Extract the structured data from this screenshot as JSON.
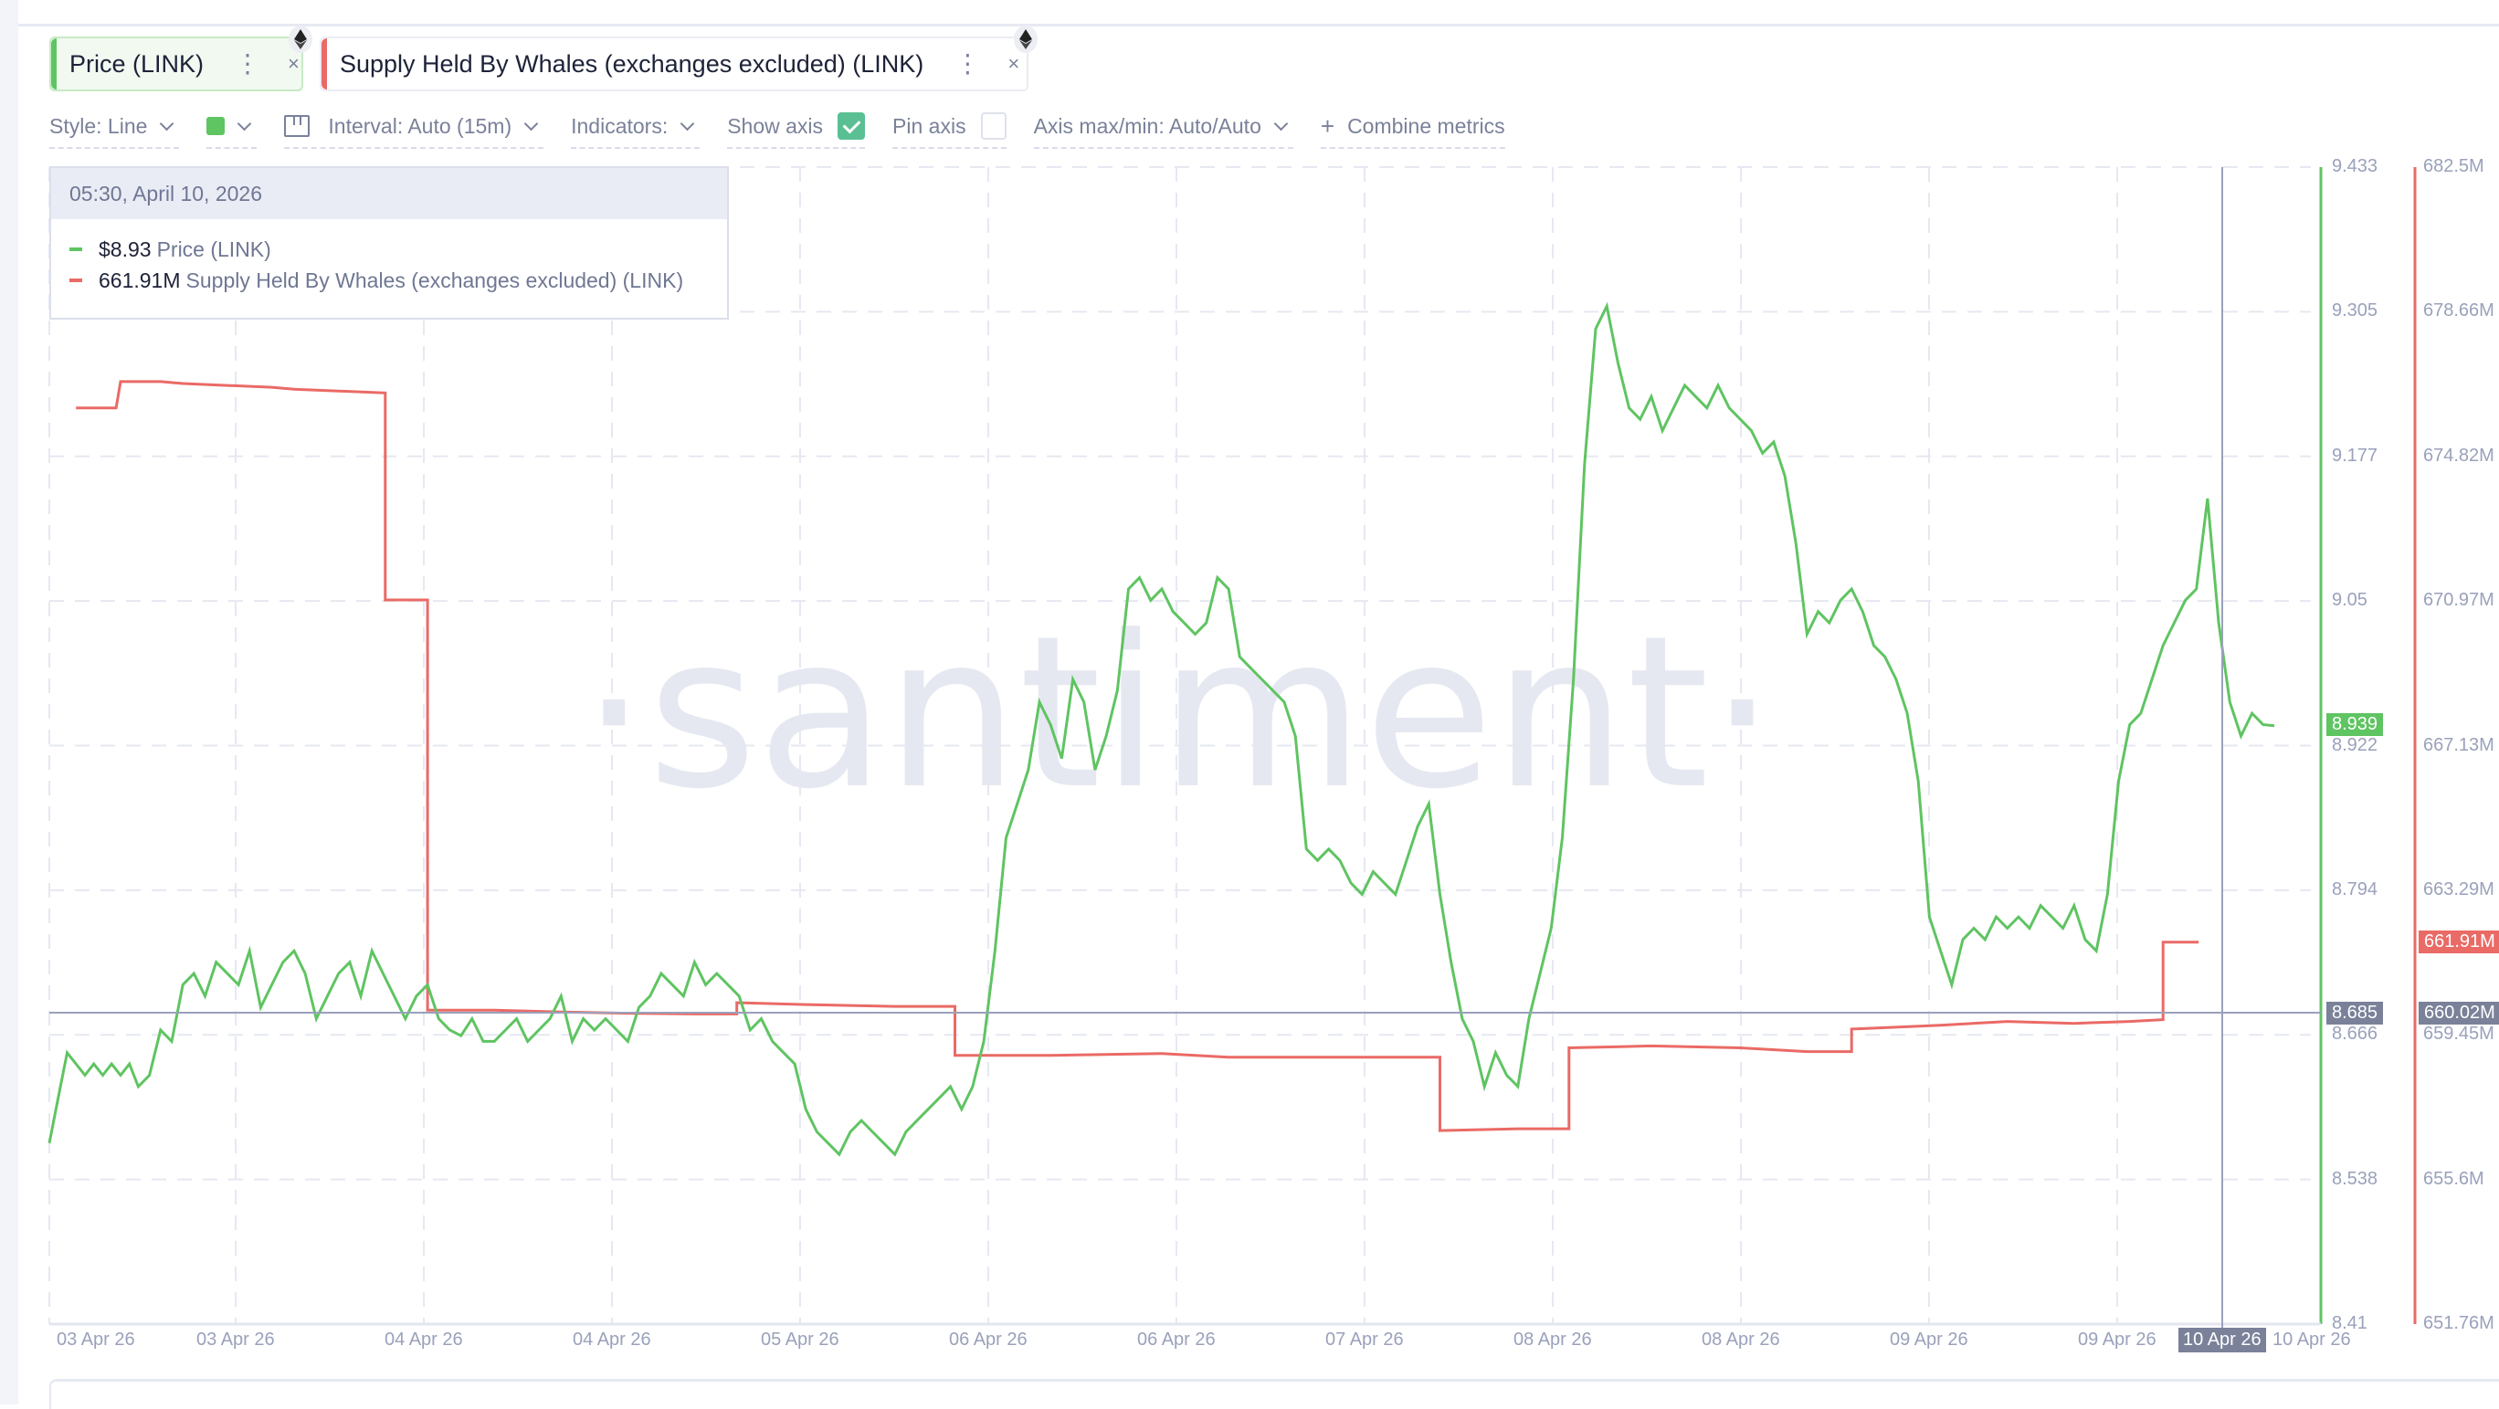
{
  "metrics": [
    {
      "label": "Price (LINK)",
      "color": "#5fc462",
      "menu_icon": "kebab-icon",
      "close_icon": "close-icon",
      "asset_icon": "ethereum-icon"
    },
    {
      "label": "Supply Held By Whales (exchanges excluded) (LINK)",
      "color": "#ea6a66",
      "menu_icon": "kebab-icon",
      "close_icon": "close-icon",
      "asset_icon": "ethereum-icon"
    }
  ],
  "toolbar": {
    "style": "Style: Line",
    "color_swatch": "#5fc462",
    "interval": "Interval: Auto (15m)",
    "indicators": "Indicators:",
    "show_axis": "Show axis",
    "show_axis_checked": true,
    "pin_axis": "Pin axis",
    "pin_axis_checked": false,
    "axis_maxmin": "Axis max/min: Auto/Auto",
    "combine": "Combine metrics",
    "close_glyph": "×",
    "kebab_glyph": "⋮",
    "plus_glyph": "+"
  },
  "tooltip": {
    "datetime": "05:30, April 10, 2026",
    "rows": [
      {
        "value": "$8.93",
        "name": "Price (LINK)",
        "color": "#5fc462"
      },
      {
        "value": "661.91M",
        "name": "Supply Held By Whales (exchanges excluded) (LINK)",
        "color": "#ea6a66"
      }
    ]
  },
  "watermark": "·santiment·",
  "crosshair": {
    "price_label": "8.685",
    "supply_label": "660.02M",
    "x_label": "10 Apr 26"
  },
  "last_value_badges": {
    "price": "8.939",
    "supply": "661.91M"
  },
  "chart_data": {
    "type": "line",
    "title": "",
    "xlabel": "",
    "x_ticks": [
      "03 Apr 26",
      "03 Apr 26",
      "04 Apr 26",
      "04 Apr 26",
      "05 Apr 26",
      "06 Apr 26",
      "06 Apr 26",
      "07 Apr 26",
      "08 Apr 26",
      "08 Apr 26",
      "09 Apr 26",
      "09 Apr 26",
      "10 Apr 26"
    ],
    "y_left": {
      "label": "Price (LINK)",
      "ticks": [
        "9.433",
        "9.305",
        "9.177",
        "9.05",
        "8.922",
        "8.794",
        "8.666",
        "8.538",
        "8.41"
      ],
      "range": [
        8.41,
        9.433
      ],
      "color": "#5fc462"
    },
    "y_right": {
      "label": "Supply Held By Whales (exchanges excluded) (LINK)",
      "ticks": [
        "682.5M",
        "678.66M",
        "674.82M",
        "670.97M",
        "667.13M",
        "663.29M",
        "659.45M",
        "655.6M",
        "651.76M"
      ],
      "range": [
        651.76,
        682.5
      ],
      "color": "#ea6a66"
    },
    "grid": true,
    "legend_position": "top-left tooltip",
    "x_domain": [
      "03 Apr 26",
      "10 Apr 26"
    ],
    "series": [
      {
        "name": "Price (LINK)",
        "axis": "left",
        "color": "#5fc462",
        "points_xfrac_value": [
          [
            0.0,
            8.57
          ],
          [
            0.004,
            8.61
          ],
          [
            0.008,
            8.65
          ],
          [
            0.012,
            8.64
          ],
          [
            0.016,
            8.63
          ],
          [
            0.02,
            8.64
          ],
          [
            0.024,
            8.63
          ],
          [
            0.028,
            8.64
          ],
          [
            0.032,
            8.63
          ],
          [
            0.036,
            8.64
          ],
          [
            0.04,
            8.62
          ],
          [
            0.045,
            8.63
          ],
          [
            0.05,
            8.67
          ],
          [
            0.055,
            8.66
          ],
          [
            0.06,
            8.71
          ],
          [
            0.065,
            8.72
          ],
          [
            0.07,
            8.7
          ],
          [
            0.075,
            8.73
          ],
          [
            0.08,
            8.72
          ],
          [
            0.085,
            8.71
          ],
          [
            0.09,
            8.74
          ],
          [
            0.095,
            8.69
          ],
          [
            0.1,
            8.71
          ],
          [
            0.105,
            8.73
          ],
          [
            0.11,
            8.74
          ],
          [
            0.115,
            8.72
          ],
          [
            0.12,
            8.68
          ],
          [
            0.125,
            8.7
          ],
          [
            0.13,
            8.72
          ],
          [
            0.135,
            8.73
          ],
          [
            0.14,
            8.7
          ],
          [
            0.145,
            8.74
          ],
          [
            0.15,
            8.72
          ],
          [
            0.155,
            8.7
          ],
          [
            0.16,
            8.68
          ],
          [
            0.165,
            8.7
          ],
          [
            0.17,
            8.71
          ],
          [
            0.175,
            8.68
          ],
          [
            0.18,
            8.67
          ],
          [
            0.185,
            8.665
          ],
          [
            0.19,
            8.68
          ],
          [
            0.195,
            8.66
          ],
          [
            0.2,
            8.66
          ],
          [
            0.205,
            8.67
          ],
          [
            0.21,
            8.68
          ],
          [
            0.215,
            8.66
          ],
          [
            0.22,
            8.67
          ],
          [
            0.225,
            8.68
          ],
          [
            0.23,
            8.7
          ],
          [
            0.235,
            8.66
          ],
          [
            0.24,
            8.68
          ],
          [
            0.245,
            8.67
          ],
          [
            0.25,
            8.68
          ],
          [
            0.255,
            8.67
          ],
          [
            0.26,
            8.66
          ],
          [
            0.265,
            8.69
          ],
          [
            0.27,
            8.7
          ],
          [
            0.275,
            8.72
          ],
          [
            0.28,
            8.71
          ],
          [
            0.285,
            8.7
          ],
          [
            0.29,
            8.73
          ],
          [
            0.295,
            8.71
          ],
          [
            0.3,
            8.72
          ],
          [
            0.305,
            8.71
          ],
          [
            0.31,
            8.7
          ],
          [
            0.315,
            8.67
          ],
          [
            0.32,
            8.68
          ],
          [
            0.325,
            8.66
          ],
          [
            0.33,
            8.65
          ],
          [
            0.335,
            8.64
          ],
          [
            0.34,
            8.6
          ],
          [
            0.345,
            8.58
          ],
          [
            0.35,
            8.57
          ],
          [
            0.355,
            8.56
          ],
          [
            0.36,
            8.58
          ],
          [
            0.365,
            8.59
          ],
          [
            0.37,
            8.58
          ],
          [
            0.375,
            8.57
          ],
          [
            0.38,
            8.56
          ],
          [
            0.385,
            8.58
          ],
          [
            0.39,
            8.59
          ],
          [
            0.395,
            8.6
          ],
          [
            0.4,
            8.61
          ],
          [
            0.405,
            8.62
          ],
          [
            0.41,
            8.6
          ],
          [
            0.415,
            8.62
          ],
          [
            0.42,
            8.66
          ],
          [
            0.425,
            8.74
          ],
          [
            0.43,
            8.84
          ],
          [
            0.435,
            8.87
          ],
          [
            0.44,
            8.9
          ],
          [
            0.445,
            8.96
          ],
          [
            0.45,
            8.94
          ],
          [
            0.455,
            8.91
          ],
          [
            0.46,
            8.98
          ],
          [
            0.465,
            8.96
          ],
          [
            0.47,
            8.9
          ],
          [
            0.475,
            8.93
          ],
          [
            0.48,
            8.97
          ],
          [
            0.485,
            9.06
          ],
          [
            0.49,
            9.07
          ],
          [
            0.495,
            9.05
          ],
          [
            0.5,
            9.06
          ],
          [
            0.505,
            9.04
          ],
          [
            0.51,
            9.03
          ],
          [
            0.515,
            9.02
          ],
          [
            0.52,
            9.03
          ],
          [
            0.525,
            9.07
          ],
          [
            0.53,
            9.06
          ],
          [
            0.535,
            9.0
          ],
          [
            0.54,
            8.99
          ],
          [
            0.545,
            8.98
          ],
          [
            0.55,
            8.97
          ],
          [
            0.555,
            8.96
          ],
          [
            0.56,
            8.93
          ],
          [
            0.565,
            8.83
          ],
          [
            0.57,
            8.82
          ],
          [
            0.575,
            8.83
          ],
          [
            0.58,
            8.82
          ],
          [
            0.585,
            8.8
          ],
          [
            0.59,
            8.79
          ],
          [
            0.595,
            8.81
          ],
          [
            0.6,
            8.8
          ],
          [
            0.605,
            8.79
          ],
          [
            0.61,
            8.82
          ],
          [
            0.615,
            8.85
          ],
          [
            0.62,
            8.87
          ],
          [
            0.625,
            8.79
          ],
          [
            0.63,
            8.73
          ],
          [
            0.635,
            8.68
          ],
          [
            0.64,
            8.66
          ],
          [
            0.645,
            8.62
          ],
          [
            0.65,
            8.65
          ],
          [
            0.655,
            8.63
          ],
          [
            0.66,
            8.62
          ],
          [
            0.665,
            8.68
          ],
          [
            0.67,
            8.72
          ],
          [
            0.675,
            8.76
          ],
          [
            0.68,
            8.84
          ],
          [
            0.685,
            8.98
          ],
          [
            0.69,
            9.17
          ],
          [
            0.695,
            9.29
          ],
          [
            0.7,
            9.31
          ],
          [
            0.705,
            9.26
          ],
          [
            0.71,
            9.22
          ],
          [
            0.715,
            9.21
          ],
          [
            0.72,
            9.23
          ],
          [
            0.725,
            9.2
          ],
          [
            0.73,
            9.22
          ],
          [
            0.735,
            9.24
          ],
          [
            0.74,
            9.23
          ],
          [
            0.745,
            9.22
          ],
          [
            0.75,
            9.24
          ],
          [
            0.755,
            9.22
          ],
          [
            0.76,
            9.21
          ],
          [
            0.765,
            9.2
          ],
          [
            0.77,
            9.18
          ],
          [
            0.775,
            9.19
          ],
          [
            0.78,
            9.16
          ],
          [
            0.785,
            9.1
          ],
          [
            0.79,
            9.02
          ],
          [
            0.795,
            9.04
          ],
          [
            0.8,
            9.03
          ],
          [
            0.805,
            9.05
          ],
          [
            0.81,
            9.06
          ],
          [
            0.815,
            9.04
          ],
          [
            0.82,
            9.01
          ],
          [
            0.825,
            9.0
          ],
          [
            0.83,
            8.98
          ],
          [
            0.835,
            8.95
          ],
          [
            0.84,
            8.89
          ],
          [
            0.845,
            8.77
          ],
          [
            0.85,
            8.74
          ],
          [
            0.855,
            8.71
          ],
          [
            0.86,
            8.75
          ],
          [
            0.865,
            8.76
          ],
          [
            0.87,
            8.75
          ],
          [
            0.875,
            8.77
          ],
          [
            0.88,
            8.76
          ],
          [
            0.885,
            8.77
          ],
          [
            0.89,
            8.76
          ],
          [
            0.895,
            8.78
          ],
          [
            0.9,
            8.77
          ],
          [
            0.905,
            8.76
          ],
          [
            0.91,
            8.78
          ],
          [
            0.915,
            8.75
          ],
          [
            0.92,
            8.74
          ],
          [
            0.925,
            8.79
          ],
          [
            0.93,
            8.89
          ],
          [
            0.935,
            8.94
          ],
          [
            0.94,
            8.95
          ],
          [
            0.945,
            8.98
          ],
          [
            0.95,
            9.01
          ],
          [
            0.955,
            9.03
          ],
          [
            0.96,
            9.05
          ],
          [
            0.965,
            9.06
          ],
          [
            0.97,
            9.14
          ],
          [
            0.975,
            9.03
          ],
          [
            0.98,
            8.96
          ],
          [
            0.985,
            8.93
          ],
          [
            0.99,
            8.95
          ],
          [
            0.995,
            8.94
          ],
          [
            1.0,
            8.939
          ]
        ]
      },
      {
        "name": "Supply Held By Whales (exchanges excluded) (LINK)",
        "axis": "right",
        "color": "#ea6a66",
        "points_xfrac_value": [
          [
            0.012,
            676.1
          ],
          [
            0.03,
            676.1
          ],
          [
            0.032,
            676.8
          ],
          [
            0.05,
            676.8
          ],
          [
            0.06,
            676.75
          ],
          [
            0.08,
            676.7
          ],
          [
            0.1,
            676.65
          ],
          [
            0.11,
            676.6
          ],
          [
            0.13,
            676.55
          ],
          [
            0.151,
            676.5
          ],
          [
            0.151,
            671.0
          ],
          [
            0.17,
            671.0
          ],
          [
            0.17,
            660.1
          ],
          [
            0.2,
            660.1
          ],
          [
            0.23,
            660.05
          ],
          [
            0.26,
            660.02
          ],
          [
            0.29,
            660.0
          ],
          [
            0.309,
            660.0
          ],
          [
            0.309,
            660.3
          ],
          [
            0.34,
            660.25
          ],
          [
            0.38,
            660.2
          ],
          [
            0.407,
            660.2
          ],
          [
            0.407,
            658.9
          ],
          [
            0.45,
            658.9
          ],
          [
            0.5,
            658.95
          ],
          [
            0.53,
            658.85
          ],
          [
            0.6,
            658.85
          ],
          [
            0.625,
            658.85
          ],
          [
            0.625,
            656.9
          ],
          [
            0.66,
            656.95
          ],
          [
            0.683,
            656.95
          ],
          [
            0.683,
            659.1
          ],
          [
            0.72,
            659.15
          ],
          [
            0.76,
            659.1
          ],
          [
            0.79,
            659.0
          ],
          [
            0.81,
            659.0
          ],
          [
            0.81,
            659.6
          ],
          [
            0.85,
            659.7
          ],
          [
            0.88,
            659.8
          ],
          [
            0.91,
            659.75
          ],
          [
            0.935,
            659.8
          ],
          [
            0.95,
            659.85
          ],
          [
            0.95,
            661.91
          ],
          [
            0.966,
            661.91
          ]
        ]
      }
    ],
    "crosshair_at": "10 Apr 26 05:30",
    "crosshair_values": {
      "price": 8.685,
      "supply": 660.02
    }
  }
}
